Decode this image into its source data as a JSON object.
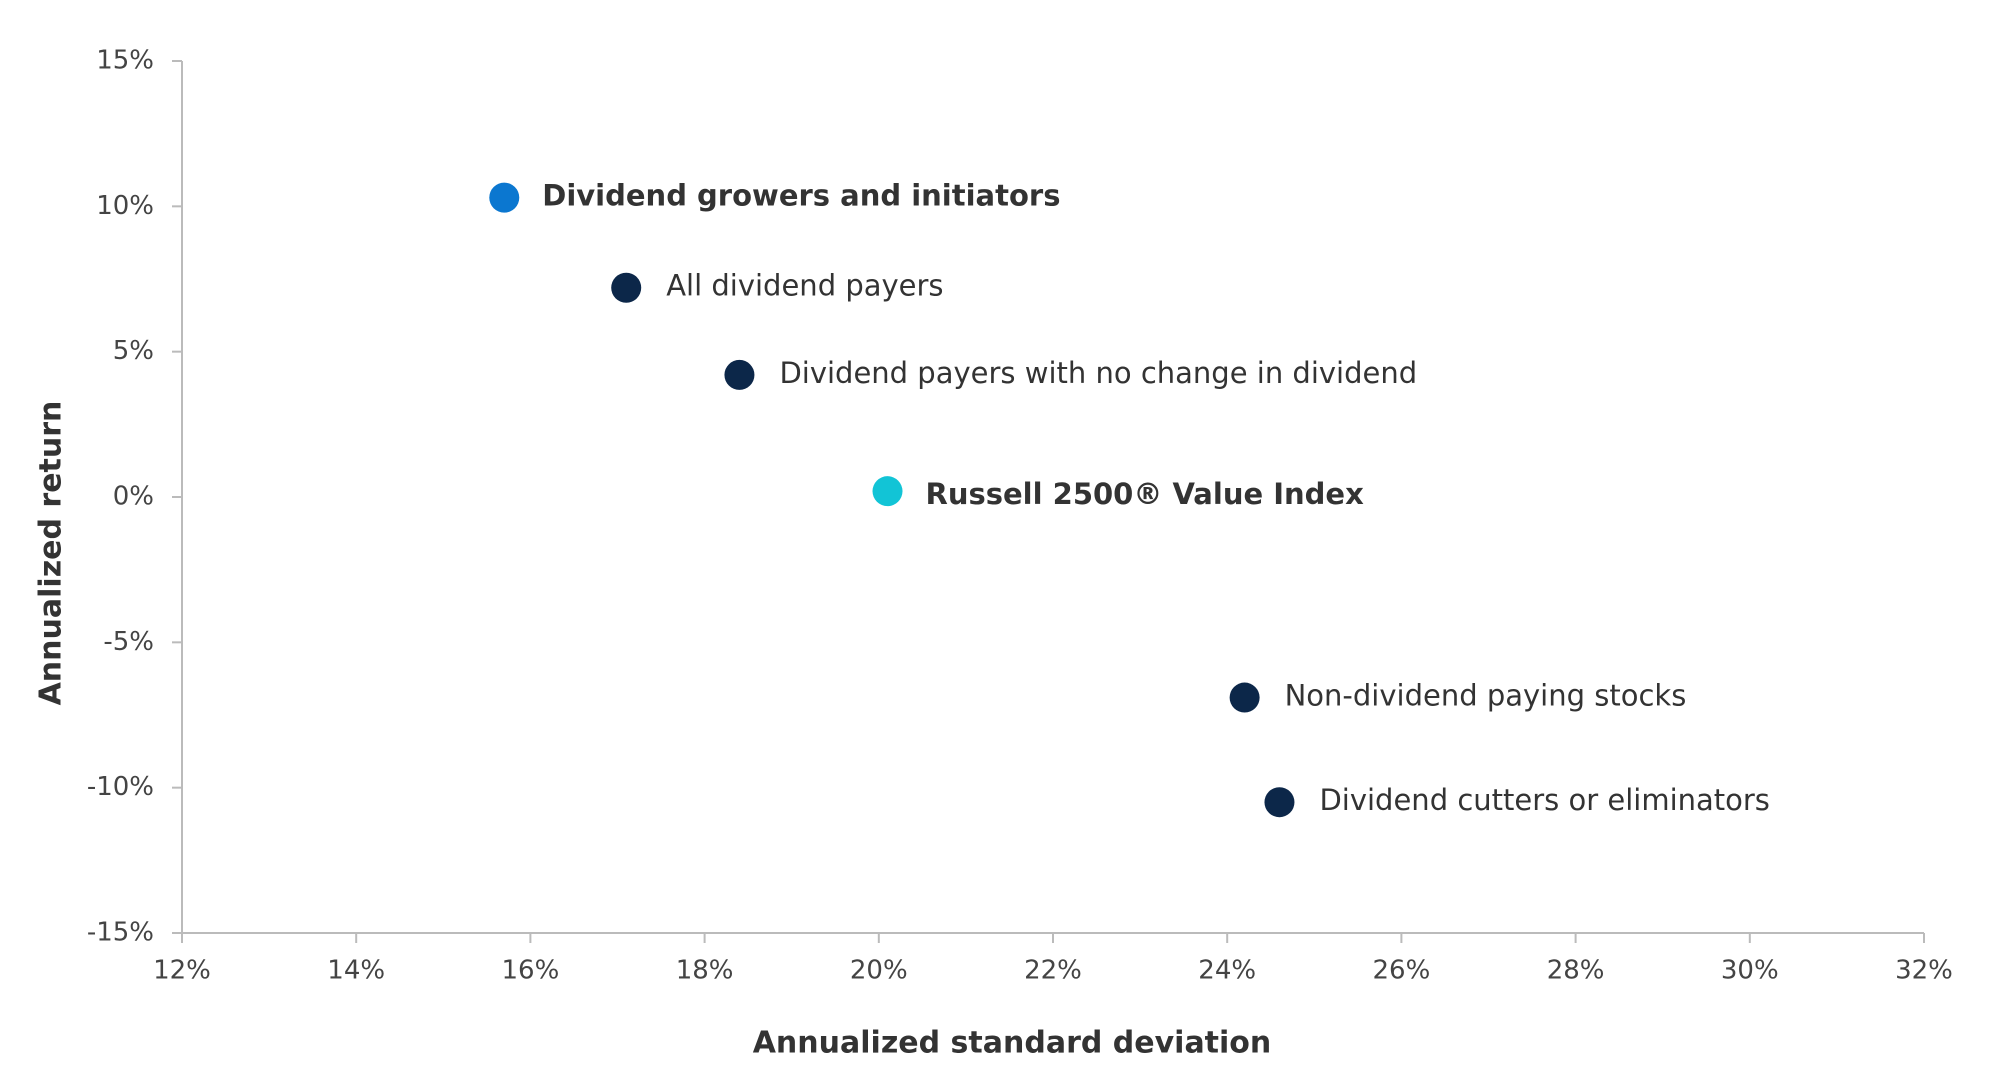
{
  "chart_data": {
    "type": "scatter",
    "xlabel": "Annualized standard deviation",
    "ylabel": "Annualized return",
    "xlim": [
      12,
      32
    ],
    "ylim": [
      -15,
      15
    ],
    "xticks": [
      {
        "value": 12,
        "label": "12%"
      },
      {
        "value": 14,
        "label": "14%"
      },
      {
        "value": 16,
        "label": "16%"
      },
      {
        "value": 18,
        "label": "18%"
      },
      {
        "value": 20,
        "label": "20%"
      },
      {
        "value": 22,
        "label": "22%"
      },
      {
        "value": 24,
        "label": "24%"
      },
      {
        "value": 26,
        "label": "26%"
      },
      {
        "value": 28,
        "label": "28%"
      },
      {
        "value": 30,
        "label": "30%"
      },
      {
        "value": 32,
        "label": "32%"
      }
    ],
    "yticks": [
      {
        "value": 15,
        "label": "15%"
      },
      {
        "value": 10,
        "label": "10%"
      },
      {
        "value": 5,
        "label": "5%"
      },
      {
        "value": 0,
        "label": "0%"
      },
      {
        "value": -5,
        "label": "-5%"
      },
      {
        "value": -10,
        "label": "-10%"
      },
      {
        "value": -15,
        "label": "-15%"
      }
    ],
    "series": [
      {
        "name": "Dividend growers and initiators",
        "color": "#0b77d0",
        "label_color": "#0b77d0",
        "bold": true,
        "x": [
          15.7
        ],
        "values": [
          10.3
        ]
      },
      {
        "name": "All dividend payers",
        "color": "#0c2749",
        "label_color": "#333333",
        "bold": false,
        "x": [
          17.1
        ],
        "values": [
          7.2
        ]
      },
      {
        "name": "Dividend payers with no change in dividend",
        "color": "#0c2749",
        "label_color": "#333333",
        "bold": false,
        "x": [
          18.4
        ],
        "values": [
          4.2
        ]
      },
      {
        "name": "Russell 2500® Value Index",
        "color": "#12c4d6",
        "label_color": "#2a2a2a",
        "bold": true,
        "x": [
          20.1
        ],
        "values": [
          0.2
        ]
      },
      {
        "name": "Non-dividend paying stocks",
        "color": "#0c2749",
        "label_color": "#333333",
        "bold": false,
        "x": [
          24.2
        ],
        "values": [
          -6.9
        ]
      },
      {
        "name": "Dividend cutters or eliminators",
        "color": "#0c2749",
        "label_color": "#333333",
        "bold": false,
        "x": [
          24.6
        ],
        "values": [
          -10.5
        ]
      }
    ]
  }
}
